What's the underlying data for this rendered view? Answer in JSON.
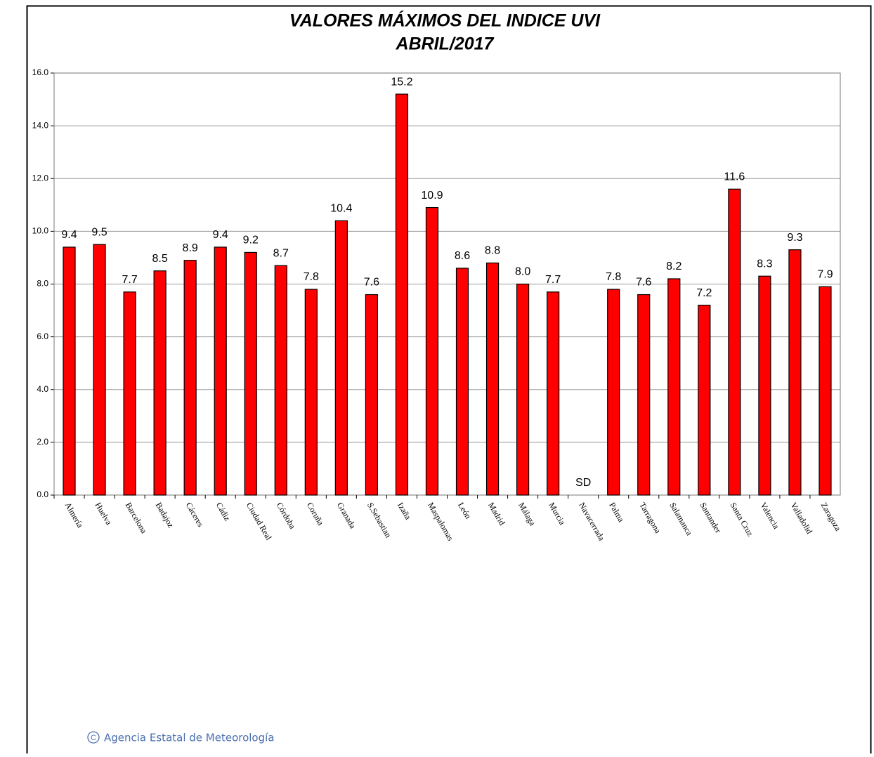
{
  "chart_data": {
    "type": "bar",
    "title": "VALORES MÁXIMOS DEL INDICE UVI",
    "subtitle": "ABRIL/2017",
    "categories": [
      "Almería",
      "Huelva",
      "Barcelona",
      "Badajoz",
      "Cáceres",
      "Cádiz",
      "Ciudad Real",
      "Córdoba",
      "Coruña",
      "Granada",
      "S.Sebastian",
      "Izaña",
      "Maspalomas",
      "León",
      "Madrid",
      "Málaga",
      "Murcia",
      "Navacerrada",
      "Palma",
      "Tarragona",
      "Salamanca",
      "Santander",
      "Santa Cruz",
      "Valencia",
      "Valladolid",
      "Zaragoza"
    ],
    "values": [
      9.4,
      9.5,
      7.7,
      8.5,
      8.9,
      9.4,
      9.2,
      8.7,
      7.8,
      10.4,
      7.6,
      15.2,
      10.9,
      8.6,
      8.8,
      8.0,
      7.7,
      null,
      7.8,
      7.6,
      8.2,
      7.2,
      11.6,
      8.3,
      9.3,
      7.9
    ],
    "value_labels": [
      "9.4",
      "9.5",
      "7.7",
      "8.5",
      "8.9",
      "9.4",
      "9.2",
      "8.7",
      "7.8",
      "10.4",
      "7.6",
      "15.2",
      "10.9",
      "8.6",
      "8.8",
      "8.0",
      "7.7",
      "SD",
      "7.8",
      "7.6",
      "8.2",
      "7.2",
      "11.6",
      "8.3",
      "9.3",
      "7.9"
    ],
    "color": "#ff0000",
    "ylim": [
      0,
      16
    ],
    "yticks": [
      {
        "value": 0,
        "label": "0.0"
      },
      {
        "value": 2,
        "label": "2.0"
      },
      {
        "value": 4,
        "label": "4.0"
      },
      {
        "value": 6,
        "label": "6.0"
      },
      {
        "value": 8,
        "label": "8.0"
      },
      {
        "value": 10,
        "label": "10.0"
      },
      {
        "value": 12,
        "label": "12.0"
      },
      {
        "value": 14,
        "label": "14.0"
      },
      {
        "value": 16,
        "label": "16.0"
      }
    ],
    "grid": true,
    "source": "Agencia Estatal de Meteorología"
  }
}
